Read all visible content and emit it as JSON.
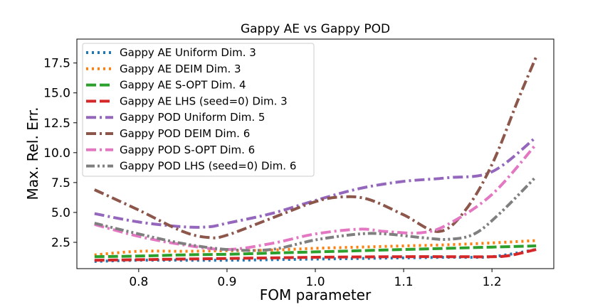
{
  "chart_data": {
    "type": "line",
    "title": "Gappy AE vs Gappy POD",
    "xlabel": "FOM parameter",
    "ylabel": "Max. Rel. Err.",
    "xlim": [
      0.73,
      1.27
    ],
    "ylim": [
      0.3,
      19.5
    ],
    "xticks": [
      0.8,
      0.9,
      1.0,
      1.1,
      1.2
    ],
    "xtick_labels": [
      "0.8",
      "0.9",
      "1.0",
      "1.1",
      "1.2"
    ],
    "yticks": [
      2.5,
      5.0,
      7.5,
      10.0,
      12.5,
      15.0,
      17.5
    ],
    "ytick_labels": [
      "2.5",
      "5.0",
      "7.5",
      "10.0",
      "12.5",
      "15.0",
      "17.5"
    ],
    "grid": false,
    "legend_position": "top-left",
    "series": [
      {
        "name": "Gappy AE Uniform Dim. 3",
        "color": "#1f77b4",
        "style": "dotted",
        "x": [
          0.75,
          0.8,
          0.85,
          0.9,
          0.95,
          1.0,
          1.05,
          1.1,
          1.15,
          1.2,
          1.25
        ],
        "y": [
          0.9,
          1.0,
          1.0,
          1.0,
          1.05,
          1.1,
          1.15,
          1.2,
          1.25,
          1.3,
          1.9
        ]
      },
      {
        "name": "Gappy AE DEIM Dim. 3",
        "color": "#ff7f0e",
        "style": "dotted",
        "x": [
          0.75,
          0.8,
          0.85,
          0.9,
          0.95,
          1.0,
          1.05,
          1.1,
          1.15,
          1.2,
          1.25
        ],
        "y": [
          1.45,
          1.75,
          1.75,
          1.8,
          1.85,
          2.0,
          2.1,
          2.2,
          2.3,
          2.45,
          2.65
        ]
      },
      {
        "name": "Gappy AE S-OPT Dim. 4",
        "color": "#2ca02c",
        "style": "dashed",
        "x": [
          0.75,
          0.8,
          0.85,
          0.9,
          0.95,
          1.0,
          1.05,
          1.1,
          1.15,
          1.2,
          1.25
        ],
        "y": [
          1.3,
          1.35,
          1.45,
          1.5,
          1.6,
          1.7,
          1.8,
          1.9,
          2.0,
          2.1,
          2.2
        ]
      },
      {
        "name": "Gappy AE LHS (seed=0) Dim. 3",
        "color": "#d62728",
        "style": "dashed",
        "x": [
          0.75,
          0.8,
          0.85,
          0.9,
          0.95,
          1.0,
          1.05,
          1.1,
          1.15,
          1.2,
          1.22,
          1.25
        ],
        "y": [
          1.0,
          1.05,
          1.1,
          1.15,
          1.2,
          1.25,
          1.28,
          1.3,
          1.3,
          1.3,
          1.4,
          1.9
        ]
      },
      {
        "name": "Gappy POD Uniform Dim. 5",
        "color": "#9467bd",
        "style": "dashdot",
        "x": [
          0.75,
          0.8,
          0.85,
          0.88,
          0.9,
          0.95,
          1.0,
          1.05,
          1.1,
          1.15,
          1.2,
          1.25
        ],
        "y": [
          4.9,
          4.2,
          3.8,
          3.8,
          4.1,
          4.9,
          6.0,
          7.0,
          7.6,
          7.9,
          8.4,
          11.3
        ]
      },
      {
        "name": "Gappy POD DEIM Dim. 6",
        "color": "#8c564b",
        "style": "dashdot",
        "x": [
          0.75,
          0.8,
          0.85,
          0.88,
          0.9,
          0.95,
          1.0,
          1.03,
          1.06,
          1.1,
          1.14,
          1.17,
          1.2,
          1.23,
          1.25
        ],
        "y": [
          6.9,
          5.2,
          3.4,
          2.9,
          3.1,
          4.5,
          5.9,
          6.3,
          6.1,
          4.8,
          3.4,
          5.2,
          9.0,
          14.5,
          18.0
        ]
      },
      {
        "name": "Gappy POD S-OPT Dim. 6",
        "color": "#e377c2",
        "style": "dashdot",
        "x": [
          0.75,
          0.8,
          0.85,
          0.9,
          0.95,
          1.0,
          1.05,
          1.08,
          1.12,
          1.15,
          1.2,
          1.25
        ],
        "y": [
          4.0,
          3.0,
          2.3,
          1.9,
          2.4,
          3.2,
          3.6,
          3.4,
          3.3,
          4.0,
          6.5,
          10.7
        ]
      },
      {
        "name": "Gappy POD LHS (seed=0) Dim. 6",
        "color": "#7f7f7f",
        "style": "dashdotdot",
        "x": [
          0.75,
          0.8,
          0.85,
          0.9,
          0.95,
          1.0,
          1.05,
          1.08,
          1.12,
          1.15,
          1.18,
          1.21,
          1.25
        ],
        "y": [
          4.1,
          3.2,
          2.4,
          1.9,
          1.9,
          2.7,
          3.2,
          3.2,
          2.9,
          2.75,
          3.2,
          5.0,
          8.0
        ]
      }
    ]
  }
}
